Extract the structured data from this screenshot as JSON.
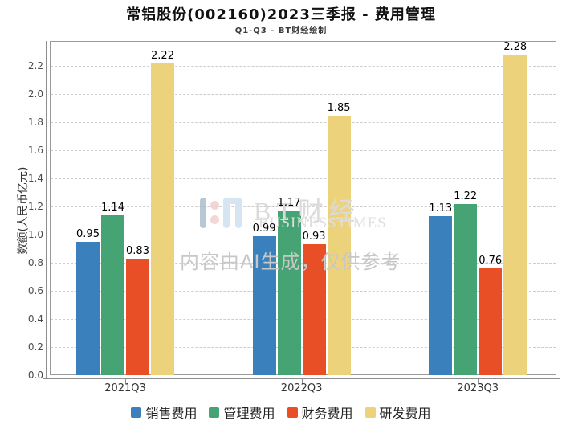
{
  "header": {
    "title": "常铝股份(002160)2023三季报 - 费用管理",
    "subtitle": "Q1-Q3 - BT财经绘制"
  },
  "chart_data": {
    "type": "bar",
    "title": "常铝股份(002160)2023三季报 - 费用管理",
    "subtitle": "Q1-Q3 - BT财经绘制",
    "categories": [
      "2021Q3",
      "2022Q3",
      "2023Q3"
    ],
    "series": [
      {
        "name": "销售费用",
        "color": "#3a80bd",
        "values": [
          0.95,
          0.99,
          1.13
        ]
      },
      {
        "name": "管理费用",
        "color": "#45a374",
        "values": [
          1.14,
          1.17,
          1.22
        ]
      },
      {
        "name": "财务费用",
        "color": "#e94f26",
        "values": [
          0.83,
          0.93,
          0.76
        ]
      },
      {
        "name": "研发费用",
        "color": "#ecd37b",
        "values": [
          2.22,
          1.85,
          2.28
        ]
      }
    ],
    "xlabel": "",
    "ylabel": "数额(人民币亿元)",
    "ylim": [
      0,
      2.38
    ],
    "yticks": [
      0.0,
      0.2,
      0.4,
      0.6,
      0.8,
      1.0,
      1.2,
      1.4,
      1.6,
      1.8,
      2.0,
      2.2
    ],
    "grid": "horizontal-dashed",
    "legend_position": "bottom",
    "value_labels": "2-decimals above bars"
  },
  "watermark": {
    "brand_cn": "BT财经",
    "brand_en": "BUSINESSTIMES",
    "disclaimer": "内容由AI生成，仅供参考"
  }
}
